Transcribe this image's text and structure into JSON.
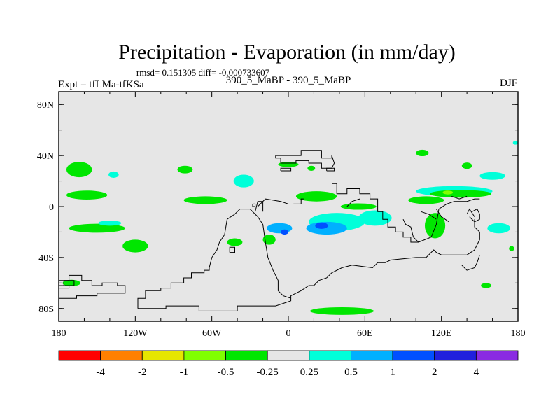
{
  "chart_data": {
    "type": "heatmap",
    "title": "Precipitation - Evaporation (in mm/day)",
    "stats_line": "rmsd= 0.151305 diff= -0.000733607",
    "subtitle_left": "Expt = tfLMa-tfKSa",
    "subtitle_center": "390_5_MaBP - 390_5_MaBP",
    "subtitle_right": "DJF",
    "lon_range": [
      -180,
      180
    ],
    "lat_range": [
      -90,
      90
    ],
    "x_ticks": [
      {
        "value": -180,
        "label": "180"
      },
      {
        "value": -120,
        "label": "120W"
      },
      {
        "value": -60,
        "label": "60W"
      },
      {
        "value": 0,
        "label": "0"
      },
      {
        "value": 60,
        "label": "60E"
      },
      {
        "value": 120,
        "label": "120E"
      },
      {
        "value": 180,
        "label": "180"
      }
    ],
    "y_ticks": [
      {
        "value": 80,
        "label": "80N"
      },
      {
        "value": 40,
        "label": "40N"
      },
      {
        "value": 0,
        "label": "0"
      },
      {
        "value": -40,
        "label": "40S"
      },
      {
        "value": -80,
        "label": "80S"
      }
    ],
    "colorbar": {
      "levels": [
        "-4",
        "-2",
        "-1",
        "-0.5",
        "-0.25",
        "0.25",
        "0.5",
        "1",
        "2",
        "4"
      ],
      "colors": [
        "#ff0000",
        "#ff8000",
        "#e6e600",
        "#80ff00",
        "#00e600",
        "#e6e6e6",
        "#00ffd9",
        "#00b0ff",
        "#0050ff",
        "#2020dd",
        "#8a2be2"
      ]
    },
    "anomaly_regions": [
      {
        "lon": -164,
        "lat": 29,
        "rx": 10,
        "ry": 6,
        "bin": 4
      },
      {
        "lon": -137,
        "lat": 25,
        "rx": 4,
        "ry": 2.5,
        "bin": 6
      },
      {
        "lon": -81,
        "lat": 29,
        "rx": 6,
        "ry": 3,
        "bin": 4
      },
      {
        "lon": -35,
        "lat": 20,
        "rx": 8,
        "ry": 5,
        "bin": 6
      },
      {
        "lon": -158,
        "lat": 9,
        "rx": 16,
        "ry": 3.5,
        "bin": 4
      },
      {
        "lon": -65,
        "lat": 5,
        "rx": 17,
        "ry": 3,
        "bin": 4
      },
      {
        "lon": -150,
        "lat": -17,
        "rx": 22,
        "ry": 3.5,
        "bin": 4
      },
      {
        "lon": -140,
        "lat": -13,
        "rx": 9,
        "ry": 2,
        "bin": 6
      },
      {
        "lon": -120,
        "lat": -31,
        "rx": 10,
        "ry": 5,
        "bin": 4
      },
      {
        "lon": -170,
        "lat": -60,
        "rx": 7,
        "ry": 2.5,
        "bin": 4
      },
      {
        "lon": -15,
        "lat": -26,
        "rx": 5,
        "ry": 4,
        "bin": 4
      },
      {
        "lon": -42,
        "lat": -28,
        "rx": 6,
        "ry": 3,
        "bin": 4
      },
      {
        "lon": 22,
        "lat": 8,
        "rx": 16,
        "ry": 4,
        "bin": 4
      },
      {
        "lon": 38,
        "lat": -12,
        "rx": 22,
        "ry": 7,
        "bin": 6
      },
      {
        "lon": 30,
        "lat": -17,
        "rx": 16,
        "ry": 5,
        "bin": 7
      },
      {
        "lon": -7,
        "lat": -17,
        "rx": 10,
        "ry": 4,
        "bin": 7
      },
      {
        "lon": -3,
        "lat": -20,
        "rx": 3,
        "ry": 2,
        "bin": 8
      },
      {
        "lon": 26,
        "lat": -15,
        "rx": 5,
        "ry": 2.5,
        "bin": 8
      },
      {
        "lon": 55,
        "lat": 0,
        "rx": 14,
        "ry": 2.5,
        "bin": 4
      },
      {
        "lon": 68,
        "lat": -9,
        "rx": 13,
        "ry": 6,
        "bin": 6
      },
      {
        "lon": 115,
        "lat": -15,
        "rx": 8,
        "ry": 10,
        "bin": 4
      },
      {
        "lon": 108,
        "lat": 5,
        "rx": 14,
        "ry": 3,
        "bin": 4
      },
      {
        "lon": 130,
        "lat": 12,
        "rx": 30,
        "ry": 4,
        "bin": 6
      },
      {
        "lon": 135,
        "lat": 10,
        "rx": 24,
        "ry": 3,
        "bin": 4
      },
      {
        "lon": 125,
        "lat": 11,
        "rx": 4,
        "ry": 1.5,
        "bin": 3
      },
      {
        "lon": 105,
        "lat": 42,
        "rx": 5,
        "ry": 2.5,
        "bin": 4
      },
      {
        "lon": 140,
        "lat": 32,
        "rx": 4,
        "ry": 2.5,
        "bin": 4
      },
      {
        "lon": 160,
        "lat": 24,
        "rx": 10,
        "ry": 3,
        "bin": 6
      },
      {
        "lon": 165,
        "lat": -17,
        "rx": 9,
        "ry": 4,
        "bin": 6
      },
      {
        "lon": 42,
        "lat": -82,
        "rx": 25,
        "ry": 3,
        "bin": 4
      },
      {
        "lon": 0,
        "lat": 33,
        "rx": 8,
        "ry": 2,
        "bin": 4
      },
      {
        "lon": 18,
        "lat": 30,
        "rx": 3,
        "ry": 2,
        "bin": 4
      },
      {
        "lon": 155,
        "lat": -62,
        "rx": 4,
        "ry": 2,
        "bin": 4
      },
      {
        "lon": 175,
        "lat": -33,
        "rx": 2,
        "ry": 2,
        "bin": 4
      },
      {
        "lon": 178,
        "lat": 50,
        "rx": 2,
        "ry": 1.5,
        "bin": 6
      }
    ],
    "coastline_polylines": [
      [
        [
          -180,
          -58
        ],
        [
          -172,
          -58
        ],
        [
          -172,
          -54
        ],
        [
          -162,
          -54
        ],
        [
          -162,
          -58
        ],
        [
          -154,
          -58
        ],
        [
          -154,
          -62
        ],
        [
          -146,
          -62
        ],
        [
          -146,
          -60
        ],
        [
          -134,
          -60
        ],
        [
          -134,
          -62
        ],
        [
          -128,
          -62
        ],
        [
          -128,
          -68
        ],
        [
          -150,
          -68
        ],
        [
          -150,
          -70
        ],
        [
          -166,
          -70
        ],
        [
          -166,
          -72
        ],
        [
          -180,
          -72
        ]
      ],
      [
        [
          -176,
          -58
        ],
        [
          -176,
          -62
        ],
        [
          -168,
          -62
        ],
        [
          -168,
          -58
        ],
        [
          -176,
          -58
        ]
      ],
      [
        [
          -180,
          -64
        ],
        [
          -172,
          -64
        ],
        [
          -172,
          -62
        ],
        [
          -180,
          -62
        ]
      ],
      [
        [
          -118,
          -80
        ],
        [
          -118,
          -72
        ],
        [
          -112,
          -72
        ],
        [
          -112,
          -66
        ],
        [
          -100,
          -66
        ],
        [
          -100,
          -64
        ],
        [
          -92,
          -64
        ],
        [
          -92,
          -60
        ],
        [
          -82,
          -60
        ],
        [
          -82,
          -56
        ],
        [
          -76,
          -56
        ],
        [
          -76,
          -52
        ],
        [
          -66,
          -52
        ],
        [
          -66,
          -50
        ],
        [
          -62,
          -50
        ],
        [
          -62,
          -48
        ]
      ],
      [
        [
          -62,
          -48
        ],
        [
          -60,
          -40
        ],
        [
          -56,
          -34
        ],
        [
          -54,
          -28
        ],
        [
          -50,
          -22
        ],
        [
          -48,
          -10
        ],
        [
          -42,
          -6
        ],
        [
          -38,
          -2
        ],
        [
          -30,
          -2
        ],
        [
          -24,
          -8
        ],
        [
          -20,
          -14
        ],
        [
          -18,
          -28
        ],
        [
          -16,
          -40
        ],
        [
          -12,
          -50
        ],
        [
          -8,
          -58
        ],
        [
          -8,
          -66
        ],
        [
          -4,
          -70
        ],
        [
          2,
          -72
        ],
        [
          2,
          -74
        ],
        [
          -4,
          -76
        ],
        [
          -10,
          -78
        ],
        [
          -40,
          -78
        ],
        [
          -40,
          -82
        ],
        [
          -70,
          -82
        ],
        [
          -70,
          -78
        ],
        [
          -96,
          -78
        ],
        [
          -96,
          -80
        ],
        [
          -118,
          -80
        ]
      ],
      [
        [
          -46,
          -36
        ],
        [
          -46,
          -32
        ],
        [
          -42,
          -32
        ],
        [
          -42,
          -36
        ],
        [
          -46,
          -36
        ]
      ],
      [
        [
          -26,
          -4
        ],
        [
          -24,
          4
        ],
        [
          -20,
          4
        ],
        [
          -20,
          -4
        ]
      ],
      [
        [
          -24,
          0
        ],
        [
          -18,
          6
        ],
        [
          -6,
          4
        ],
        [
          0,
          2
        ]
      ],
      [
        [
          -10,
          40
        ],
        [
          10,
          40
        ],
        [
          10,
          44
        ],
        [
          26,
          44
        ],
        [
          26,
          38
        ],
        [
          34,
          38
        ],
        [
          34,
          40
        ],
        [
          36,
          34
        ],
        [
          34,
          30
        ],
        [
          26,
          30
        ],
        [
          26,
          34
        ],
        [
          16,
          34
        ],
        [
          16,
          36
        ],
        [
          6,
          36
        ],
        [
          6,
          34
        ],
        [
          -6,
          34
        ],
        [
          -6,
          38
        ],
        [
          -10,
          38
        ],
        [
          -10,
          40
        ]
      ],
      [
        [
          -6,
          28
        ],
        [
          2,
          28
        ],
        [
          2,
          30
        ],
        [
          -6,
          30
        ],
        [
          -6,
          28
        ]
      ],
      [
        [
          30,
          28
        ],
        [
          36,
          28
        ],
        [
          36,
          30
        ],
        [
          30,
          30
        ],
        [
          30,
          28
        ]
      ],
      [
        [
          34,
          18
        ],
        [
          38,
          18
        ],
        [
          38,
          10
        ],
        [
          46,
          10
        ],
        [
          46,
          14
        ],
        [
          56,
          14
        ],
        [
          56,
          10
        ],
        [
          64,
          10
        ],
        [
          64,
          6
        ],
        [
          70,
          6
        ],
        [
          70,
          2
        ]
      ],
      [
        [
          46,
          0
        ],
        [
          50,
          4
        ],
        [
          56,
          6
        ]
      ],
      [
        [
          -28,
          2
        ],
        [
          -28,
          0
        ],
        [
          -26,
          0
        ],
        [
          -26,
          2
        ],
        [
          -28,
          2
        ]
      ],
      [
        [
          4,
          2
        ],
        [
          10,
          2
        ],
        [
          10,
          6
        ],
        [
          12,
          6
        ]
      ],
      [
        [
          70,
          2
        ],
        [
          70,
          -4
        ],
        [
          74,
          -4
        ],
        [
          74,
          -10
        ],
        [
          78,
          -10
        ],
        [
          78,
          -16
        ],
        [
          84,
          -16
        ],
        [
          84,
          -20
        ],
        [
          90,
          -20
        ],
        [
          90,
          -24
        ],
        [
          96,
          -24
        ],
        [
          96,
          -28
        ],
        [
          102,
          -28
        ]
      ],
      [
        [
          90,
          -10
        ],
        [
          92,
          -14
        ],
        [
          96,
          -16
        ],
        [
          98,
          -24
        ],
        [
          102,
          -28
        ],
        [
          112,
          -24
        ],
        [
          116,
          -14
        ],
        [
          118,
          -2
        ],
        [
          124,
          2
        ],
        [
          130,
          4
        ],
        [
          140,
          4
        ],
        [
          146,
          6
        ],
        [
          150,
          6
        ]
      ],
      [
        [
          104,
          -4
        ],
        [
          110,
          -6
        ],
        [
          116,
          -10
        ]
      ],
      [
        [
          116,
          -2
        ],
        [
          120,
          -8
        ],
        [
          126,
          -12
        ]
      ],
      [
        [
          140,
          -6
        ],
        [
          142,
          -2
        ],
        [
          146,
          -8
        ]
      ],
      [
        [
          144,
          -4
        ],
        [
          148,
          -2
        ],
        [
          150,
          -6
        ],
        [
          150,
          -10
        ],
        [
          146,
          -12
        ],
        [
          142,
          -8
        ]
      ],
      [
        [
          146,
          -10
        ],
        [
          146,
          -16
        ],
        [
          150,
          -20
        ],
        [
          150,
          -26
        ],
        [
          146,
          -34
        ],
        [
          140,
          -38
        ],
        [
          130,
          -38
        ],
        [
          120,
          -38
        ],
        [
          116,
          -36
        ],
        [
          114,
          -34
        ],
        [
          112,
          -36
        ],
        [
          108,
          -40
        ],
        [
          100,
          -40
        ],
        [
          80,
          -42
        ],
        [
          76,
          -44
        ],
        [
          70,
          -44
        ],
        [
          66,
          -48
        ],
        [
          50,
          -46
        ],
        [
          42,
          -48
        ],
        [
          34,
          -52
        ],
        [
          30,
          -56
        ],
        [
          24,
          -58
        ],
        [
          20,
          -62
        ],
        [
          16,
          -62
        ],
        [
          10,
          -66
        ],
        [
          2,
          -70
        ],
        [
          2,
          -72
        ]
      ],
      [
        [
          150,
          -38
        ],
        [
          148,
          -44
        ],
        [
          146,
          -48
        ],
        [
          140,
          -50
        ],
        [
          136,
          -46
        ]
      ],
      [
        [
          128,
          8
        ],
        [
          134,
          6
        ],
        [
          140,
          8
        ]
      ]
    ]
  }
}
